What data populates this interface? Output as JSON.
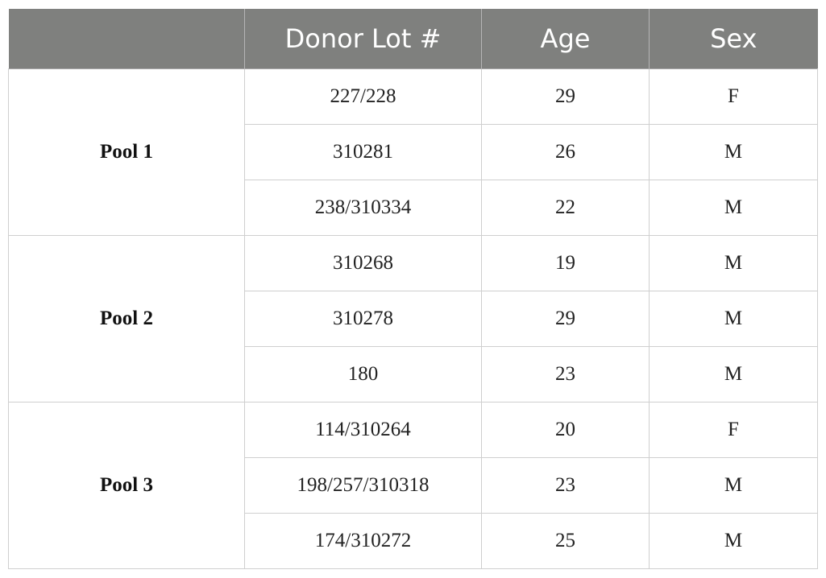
{
  "table": {
    "headers": [
      "",
      "Donor Lot #",
      "Age",
      "Sex"
    ],
    "pools": [
      {
        "name": "Pool 1",
        "rows": [
          {
            "lot": "227/228",
            "age": "29",
            "sex": "F"
          },
          {
            "lot": "310281",
            "age": "26",
            "sex": "M"
          },
          {
            "lot": "238/310334",
            "age": "22",
            "sex": "M"
          }
        ]
      },
      {
        "name": "Pool 2",
        "rows": [
          {
            "lot": "310268",
            "age": "19",
            "sex": "M"
          },
          {
            "lot": "310278",
            "age": "29",
            "sex": "M"
          },
          {
            "lot": "180",
            "age": "23",
            "sex": "M"
          }
        ]
      },
      {
        "name": "Pool 3",
        "rows": [
          {
            "lot": "114/310264",
            "age": "20",
            "sex": "F"
          },
          {
            "lot": "198/257/310318",
            "age": "23",
            "sex": "M"
          },
          {
            "lot": "174/310272",
            "age": "25",
            "sex": "M"
          }
        ]
      }
    ]
  }
}
